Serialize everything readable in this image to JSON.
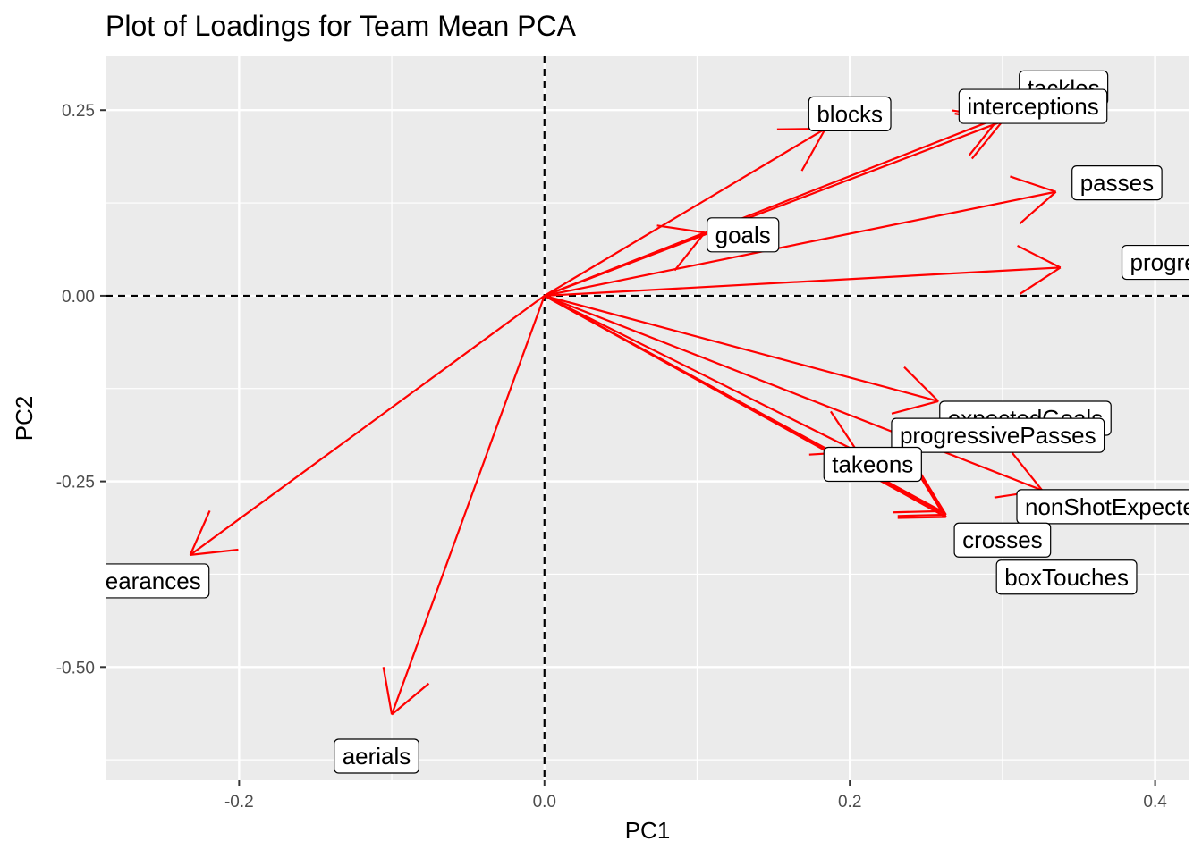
{
  "chart_data": {
    "type": "biplot-loadings",
    "title": "Plot of Loadings for Team Mean PCA",
    "xlabel": "PC1",
    "ylabel": "PC2",
    "xlim": [
      -0.2875,
      0.4225
    ],
    "ylim": [
      -0.6525,
      0.3225
    ],
    "x_ticks": [
      -0.2,
      0.0,
      0.2,
      0.4
    ],
    "x_tick_labels": [
      "-0.2",
      "0.0",
      "0.2",
      "0.4"
    ],
    "y_ticks": [
      -0.5,
      -0.25,
      0.0,
      0.25
    ],
    "y_tick_labels": [
      "-0.50",
      "-0.25",
      "0.00",
      "0.25"
    ],
    "grid": true,
    "reference_lines": {
      "x": 0,
      "y": 0,
      "style": "dashed"
    },
    "arrow_color": "#ff0000",
    "panel_background": "#ebebeb",
    "loadings": [
      {
        "label": "tackles",
        "x": 0.298,
        "y": 0.24
      },
      {
        "label": "interceptions",
        "x": 0.3,
        "y": 0.235
      },
      {
        "label": "blocks",
        "x": 0.184,
        "y": 0.225
      },
      {
        "label": "passes",
        "x": 0.335,
        "y": 0.14
      },
      {
        "label": "goals",
        "x": 0.105,
        "y": 0.085
      },
      {
        "label": "progressivePasses",
        "x": 0.338,
        "y": 0.038
      },
      {
        "label": "expectedGoals",
        "x": 0.258,
        "y": -0.142
      },
      {
        "label": "progressivePasses",
        "x": 0.326,
        "y": -0.262
      },
      {
        "label": "takeons",
        "x": 0.205,
        "y": -0.21
      },
      {
        "label": "nonShotExpectedGoals",
        "x": 0.263,
        "y": -0.298
      },
      {
        "label": "crosses",
        "x": 0.263,
        "y": -0.295
      },
      {
        "label": "boxTouches",
        "x": 0.26,
        "y": -0.29
      },
      {
        "label": "clearances",
        "x": -0.232,
        "y": -0.349
      },
      {
        "label": "aerials",
        "x": -0.1,
        "y": -0.564
      }
    ],
    "label_positions": [
      {
        "label": "tackles",
        "x": 0.34,
        "y": 0.28
      },
      {
        "label": "interceptions",
        "x": 0.32,
        "y": 0.255
      },
      {
        "label": "blocks",
        "x": 0.2,
        "y": 0.245
      },
      {
        "label": "passes",
        "x": 0.375,
        "y": 0.152
      },
      {
        "label": "goals",
        "x": 0.13,
        "y": 0.082
      },
      {
        "label": "progressivePasses",
        "x": 0.428,
        "y": 0.045
      },
      {
        "label": "expectedGoals",
        "x": 0.315,
        "y": -0.165
      },
      {
        "label": "progressivePasses",
        "x": 0.297,
        "y": -0.188
      },
      {
        "label": "takeons",
        "x": 0.215,
        "y": -0.227
      },
      {
        "label": "nonShotExpectedGoals",
        "x": 0.385,
        "y": -0.284
      },
      {
        "label": "crosses",
        "x": 0.3,
        "y": -0.329
      },
      {
        "label": "boxTouches",
        "x": 0.342,
        "y": -0.379
      },
      {
        "label": "clearances",
        "x": -0.258,
        "y": -0.384
      },
      {
        "label": "aerials",
        "x": -0.11,
        "y": -0.62
      }
    ],
    "label_display": [
      "tackles",
      "interceptions",
      "blocks",
      "passes",
      "goals",
      "progressiveP",
      "expectedGoals",
      "progressivePasses",
      "takeons",
      "nonShotExpectedGo",
      "crosses",
      "boxTouches",
      "learances",
      "aerials"
    ]
  }
}
